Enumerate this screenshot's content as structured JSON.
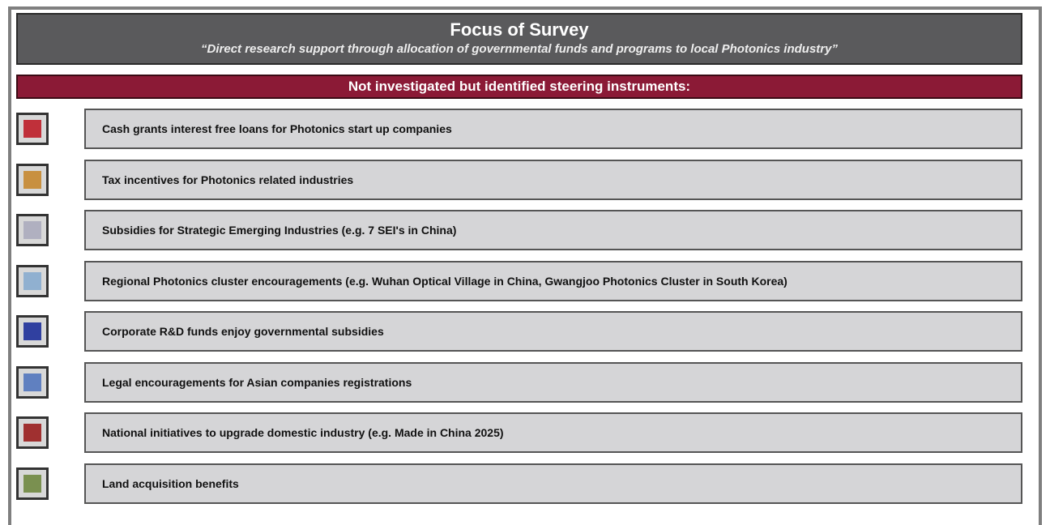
{
  "header": {
    "title": "Focus of Survey",
    "subtitle": "“Direct research support through allocation of governmental funds and programs to local Photonics industry”"
  },
  "banner": "Not investigated but identified steering instruments:",
  "items": [
    "Cash grants interest free loans for Photonics start up companies",
    "Tax incentives for Photonics related industries",
    "Subsidies for Strategic Emerging Industries  (e.g. 7 SEI's in China)",
    "Regional Photonics cluster encouragements  (e.g. Wuhan Optical Village in China, Gwangjoo Photonics Cluster in South Korea)",
    "Corporate R&D funds enjoy governmental subsidies",
    "Legal encouragements for Asian companies registrations",
    "National initiatives to upgrade domestic industry (e.g. Made in China 2025)",
    "Land acquisition benefits"
  ]
}
